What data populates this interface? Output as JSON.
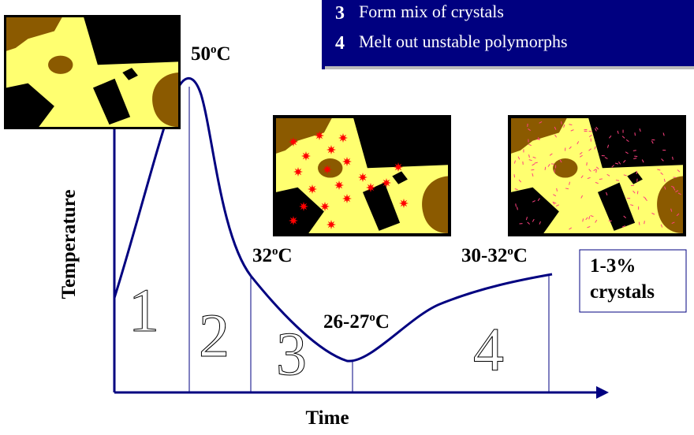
{
  "legend": {
    "items": [
      {
        "number": "3",
        "text": "Form mix of crystals"
      },
      {
        "number": "4",
        "text": "Melt out unstable polymorphs"
      }
    ]
  },
  "axes": {
    "y_label": "Temperature",
    "x_label": "Time"
  },
  "temperature_labels": [
    {
      "main": "50",
      "sup": "o",
      "unit": "C"
    },
    {
      "main": "32",
      "sup": "o",
      "unit": "C"
    },
    {
      "main": "26-27",
      "sup": "o",
      "unit": "C"
    },
    {
      "main": "30-32",
      "sup": "o",
      "unit": "C"
    }
  ],
  "phases": [
    "1",
    "2",
    "3",
    "4"
  ],
  "result_box": {
    "line1": "1-3%",
    "line2": "crystals"
  }
}
